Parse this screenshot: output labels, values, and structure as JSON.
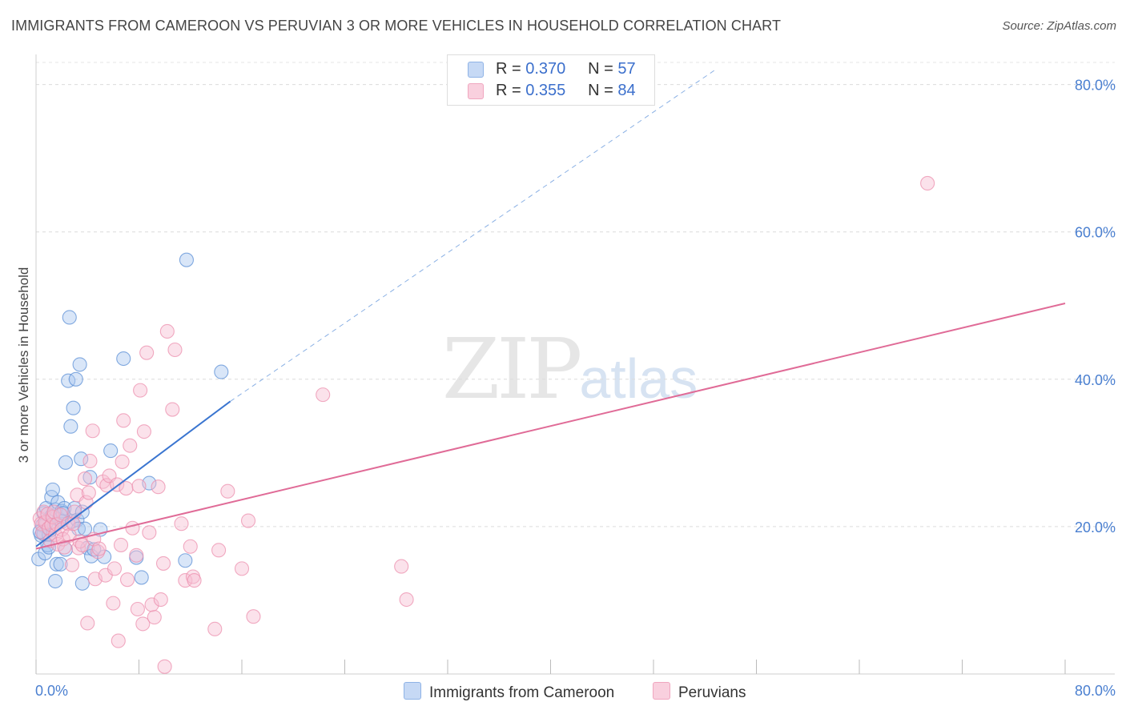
{
  "title": "IMMIGRANTS FROM CAMEROON VS PERUVIAN 3 OR MORE VEHICLES IN HOUSEHOLD CORRELATION CHART",
  "source": "Source: ZipAtlas.com",
  "watermark": {
    "zip": "ZIP",
    "atlas": "atlas"
  },
  "legend": {
    "r_label": "R =",
    "n_label": "N =",
    "series": [
      {
        "name": "Immigrants from Cameroon",
        "r": "0.370",
        "n": "57",
        "color": "#8fb3e6",
        "fill": "#c6d9f5"
      },
      {
        "name": "Peruvians",
        "r": "0.355",
        "n": "84",
        "color": "#f0a6bf",
        "fill": "#f9d0de"
      }
    ]
  },
  "chart_data": {
    "type": "scatter",
    "title": "IMMIGRANTS FROM CAMEROON VS PERUVIAN 3 OR MORE VEHICLES IN HOUSEHOLD CORRELATION CHART",
    "xlabel": "",
    "ylabel": "3 or more Vehicles in Household",
    "xlim": [
      0,
      80
    ],
    "ylim": [
      0,
      83
    ],
    "x_tick_labels": [
      "0.0%",
      "80.0%"
    ],
    "y_ticks": [
      20,
      40,
      60,
      80
    ],
    "y_tick_labels": [
      "20.0%",
      "40.0%",
      "60.0%",
      "80.0%"
    ],
    "grid": true,
    "series": [
      {
        "name": "Immigrants from Cameroon",
        "color": "#5b8fd6",
        "points": [
          [
            0.2,
            15.6
          ],
          [
            0.4,
            18.8
          ],
          [
            0.5,
            20.2
          ],
          [
            0.6,
            19.0
          ],
          [
            0.6,
            21.8
          ],
          [
            0.7,
            16.4
          ],
          [
            0.8,
            22.5
          ],
          [
            0.9,
            17.5
          ],
          [
            1.0,
            18.9
          ],
          [
            1.1,
            19.5
          ],
          [
            1.2,
            24.0
          ],
          [
            1.2,
            21.4
          ],
          [
            1.3,
            25.0
          ],
          [
            1.4,
            20.1
          ],
          [
            1.5,
            22.3
          ],
          [
            1.5,
            12.6
          ],
          [
            1.6,
            14.9
          ],
          [
            1.7,
            23.3
          ],
          [
            1.8,
            21.0
          ],
          [
            1.9,
            14.9
          ],
          [
            2.0,
            22.1
          ],
          [
            2.0,
            20.7
          ],
          [
            2.2,
            22.5
          ],
          [
            2.3,
            16.9
          ],
          [
            2.3,
            28.7
          ],
          [
            2.5,
            39.8
          ],
          [
            2.6,
            48.4
          ],
          [
            2.7,
            33.6
          ],
          [
            2.8,
            20.7
          ],
          [
            2.9,
            36.1
          ],
          [
            3.0,
            22.5
          ],
          [
            3.1,
            40.0
          ],
          [
            3.2,
            20.9
          ],
          [
            3.3,
            19.7
          ],
          [
            3.4,
            42.0
          ],
          [
            3.5,
            29.2
          ],
          [
            3.6,
            12.3
          ],
          [
            3.6,
            22.0
          ],
          [
            3.8,
            19.7
          ],
          [
            4.0,
            17.1
          ],
          [
            4.2,
            26.7
          ],
          [
            4.3,
            16.0
          ],
          [
            4.5,
            16.9
          ],
          [
            5.0,
            19.6
          ],
          [
            5.3,
            15.9
          ],
          [
            5.8,
            30.3
          ],
          [
            6.8,
            42.8
          ],
          [
            7.8,
            15.8
          ],
          [
            8.2,
            13.1
          ],
          [
            8.8,
            25.9
          ],
          [
            11.6,
            15.4
          ],
          [
            11.7,
            56.2
          ],
          [
            14.4,
            41.0
          ],
          [
            0.3,
            19.3
          ],
          [
            0.8,
            20.5
          ],
          [
            1.0,
            17.2
          ],
          [
            2.1,
            21.8
          ]
        ]
      },
      {
        "name": "Peruvians",
        "color": "#ec8fae",
        "points": [
          [
            0.3,
            21.1
          ],
          [
            0.4,
            20.4
          ],
          [
            0.5,
            19.2
          ],
          [
            0.6,
            22.0
          ],
          [
            0.7,
            20.6
          ],
          [
            0.9,
            21.7
          ],
          [
            1.0,
            19.8
          ],
          [
            1.1,
            18.1
          ],
          [
            1.2,
            20.2
          ],
          [
            1.3,
            21.3
          ],
          [
            1.4,
            22.0
          ],
          [
            1.5,
            18.9
          ],
          [
            1.6,
            20.3
          ],
          [
            1.7,
            17.6
          ],
          [
            1.9,
            21.6
          ],
          [
            2.0,
            19.6
          ],
          [
            2.1,
            18.3
          ],
          [
            2.2,
            17.2
          ],
          [
            2.5,
            20.4
          ],
          [
            2.6,
            18.8
          ],
          [
            2.8,
            14.8
          ],
          [
            2.9,
            20.4
          ],
          [
            3.0,
            22.0
          ],
          [
            3.2,
            24.3
          ],
          [
            3.3,
            17.1
          ],
          [
            3.4,
            18.0
          ],
          [
            3.6,
            17.5
          ],
          [
            3.8,
            26.5
          ],
          [
            3.9,
            23.3
          ],
          [
            4.0,
            6.9
          ],
          [
            4.1,
            24.6
          ],
          [
            4.2,
            28.9
          ],
          [
            4.4,
            33.0
          ],
          [
            4.5,
            18.3
          ],
          [
            4.6,
            12.9
          ],
          [
            4.8,
            16.6
          ],
          [
            4.9,
            17.0
          ],
          [
            5.2,
            26.1
          ],
          [
            5.4,
            13.4
          ],
          [
            5.5,
            25.6
          ],
          [
            5.7,
            26.9
          ],
          [
            6.0,
            9.6
          ],
          [
            6.1,
            14.3
          ],
          [
            6.3,
            25.7
          ],
          [
            6.4,
            4.5
          ],
          [
            6.6,
            17.5
          ],
          [
            6.7,
            28.8
          ],
          [
            6.8,
            34.4
          ],
          [
            7.0,
            25.2
          ],
          [
            7.1,
            12.8
          ],
          [
            7.3,
            31.0
          ],
          [
            7.5,
            19.8
          ],
          [
            7.8,
            16.1
          ],
          [
            7.9,
            8.8
          ],
          [
            8.0,
            25.5
          ],
          [
            8.1,
            38.5
          ],
          [
            8.3,
            6.8
          ],
          [
            8.4,
            32.9
          ],
          [
            8.6,
            43.6
          ],
          [
            8.8,
            19.2
          ],
          [
            9.0,
            9.4
          ],
          [
            9.2,
            7.7
          ],
          [
            9.5,
            25.4
          ],
          [
            9.7,
            10.1
          ],
          [
            9.9,
            15.0
          ],
          [
            10.0,
            1.0
          ],
          [
            10.2,
            46.5
          ],
          [
            10.6,
            35.9
          ],
          [
            10.8,
            44.0
          ],
          [
            11.3,
            20.4
          ],
          [
            11.6,
            12.7
          ],
          [
            12.0,
            17.3
          ],
          [
            12.2,
            13.2
          ],
          [
            12.3,
            12.7
          ],
          [
            13.9,
            6.1
          ],
          [
            14.2,
            16.8
          ],
          [
            14.9,
            24.8
          ],
          [
            16.0,
            14.3
          ],
          [
            16.5,
            20.8
          ],
          [
            16.9,
            7.8
          ],
          [
            22.3,
            37.9
          ],
          [
            28.4,
            14.6
          ],
          [
            28.8,
            10.1
          ],
          [
            69.3,
            66.6
          ]
        ]
      }
    ],
    "trend_lines": [
      {
        "series": "Immigrants from Cameroon",
        "x0": 0,
        "y0": 17.3,
        "x1": 15.1,
        "y1": 37.0,
        "extended_to": [
          52.8,
          82.0
        ],
        "extended_style": "dashed"
      },
      {
        "series": "Peruvians",
        "x0": 0,
        "y0": 17.0,
        "x1": 80,
        "y1": 50.3
      }
    ]
  }
}
